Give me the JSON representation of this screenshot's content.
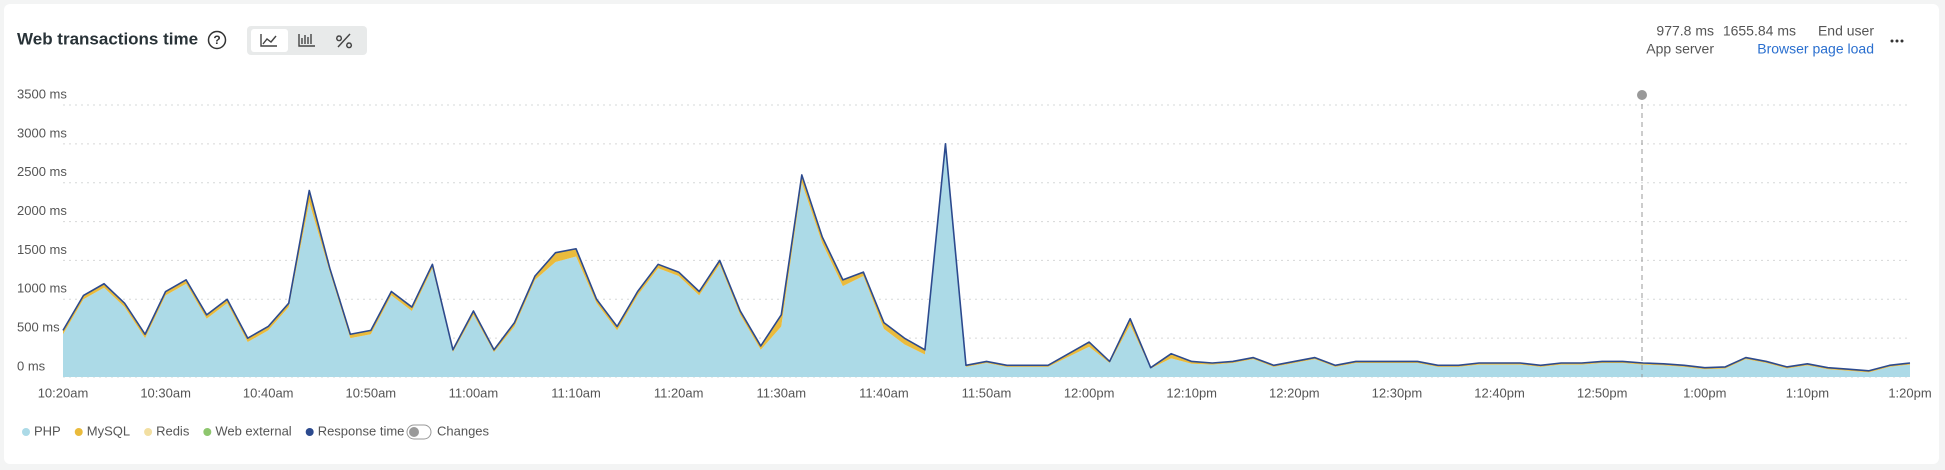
{
  "header": {
    "title": "Web transactions time",
    "summary": [
      {
        "value": "977.8 ms",
        "label": "App server"
      },
      {
        "value": "1655.84 ms",
        "label": "End user",
        "link": "Browser page load"
      }
    ],
    "toggle": "Changes"
  },
  "chart_data": {
    "type": "area",
    "categories": [
      "10:20am",
      null,
      null,
      null,
      null,
      "10:30am",
      null,
      null,
      null,
      null,
      "10:40am",
      null,
      null,
      null,
      null,
      "10:50am",
      null,
      null,
      null,
      null,
      "11:00am",
      null,
      null,
      null,
      null,
      "11:10am",
      null,
      null,
      null,
      null,
      "11:20am",
      null,
      null,
      null,
      null,
      "11:30am",
      null,
      null,
      null,
      null,
      "11:40am",
      null,
      null,
      null,
      null,
      "11:50am",
      null,
      null,
      null,
      null,
      "12:00pm",
      null,
      null,
      null,
      null,
      "12:10pm",
      null,
      null,
      null,
      null,
      "12:20pm",
      null,
      null,
      null,
      null,
      "12:30pm",
      null,
      null,
      null,
      null,
      "12:40pm",
      null,
      null,
      null,
      null,
      "12:50pm",
      null,
      null,
      null,
      null,
      "1:00pm",
      null,
      null,
      null,
      null,
      "1:10pm",
      null,
      null,
      null,
      null,
      "1:20pm"
    ],
    "series": [
      {
        "name": "PHP",
        "type": "area",
        "color": "#acdae7",
        "values": [
          550,
          1000,
          1150,
          900,
          500,
          1050,
          1200,
          750,
          950,
          450,
          600,
          900,
          2250,
          1350,
          500,
          550,
          1050,
          850,
          1400,
          320,
          800,
          320,
          650,
          1250,
          1480,
          1550,
          950,
          600,
          1050,
          1400,
          1300,
          1050,
          1450,
          800,
          350,
          650,
          2500,
          1720,
          1170,
          1300,
          620,
          420,
          290,
          2950,
          130,
          180,
          130,
          130,
          130,
          260,
          390,
          180,
          670,
          110,
          240,
          170,
          160,
          180,
          230,
          130,
          180,
          230,
          130,
          180,
          180,
          180,
          180,
          130,
          130,
          160,
          160,
          160,
          130,
          160,
          160,
          180,
          180,
          160,
          150,
          130,
          100,
          110,
          230,
          180,
          110,
          150,
          100,
          80,
          60,
          130,
          160
        ]
      },
      {
        "name": "MySQL",
        "type": "area",
        "color": "#eabb3c",
        "values": [
          50,
          50,
          50,
          50,
          50,
          50,
          50,
          50,
          50,
          50,
          50,
          50,
          150,
          50,
          50,
          50,
          50,
          50,
          50,
          30,
          50,
          30,
          50,
          50,
          120,
          100,
          50,
          50,
          50,
          50,
          50,
          50,
          50,
          50,
          50,
          150,
          100,
          80,
          80,
          50,
          80,
          80,
          60,
          50,
          20,
          20,
          20,
          20,
          20,
          40,
          60,
          20,
          80,
          10,
          60,
          30,
          20,
          20,
          20,
          20,
          20,
          20,
          20,
          20,
          20,
          20,
          20,
          20,
          20,
          20,
          20,
          20,
          20,
          20,
          20,
          20,
          20,
          20,
          20,
          20,
          20,
          20,
          20,
          20,
          20,
          20,
          20,
          20,
          20,
          20,
          20
        ]
      },
      {
        "name": "Redis",
        "type": "area",
        "color": "#f2dfa2",
        "values": [
          0,
          0,
          0,
          0,
          0,
          0,
          0,
          0,
          0,
          0,
          0,
          0,
          0,
          0,
          0,
          0,
          0,
          0,
          0,
          0,
          0,
          0,
          0,
          0,
          0,
          0,
          0,
          0,
          0,
          0,
          0,
          0,
          0,
          0,
          0,
          0,
          0,
          0,
          0,
          0,
          0,
          0,
          0,
          0,
          0,
          0,
          0,
          0,
          0,
          0,
          0,
          0,
          0,
          0,
          0,
          0,
          0,
          0,
          0,
          0,
          0,
          0,
          0,
          0,
          0,
          0,
          0,
          0,
          0,
          0,
          0,
          0,
          0,
          0,
          0,
          0,
          0,
          0,
          0,
          0,
          0,
          0,
          0,
          0,
          0,
          0,
          0,
          0,
          0,
          0,
          0
        ]
      },
      {
        "name": "Web external",
        "type": "area",
        "color": "#8ec66e",
        "values": [
          0,
          0,
          0,
          0,
          0,
          0,
          0,
          0,
          0,
          0,
          0,
          0,
          0,
          0,
          0,
          0,
          0,
          0,
          0,
          0,
          0,
          0,
          0,
          0,
          0,
          0,
          0,
          0,
          0,
          0,
          0,
          0,
          0,
          0,
          0,
          0,
          0,
          0,
          0,
          0,
          0,
          0,
          0,
          0,
          0,
          0,
          0,
          0,
          0,
          0,
          0,
          0,
          0,
          0,
          0,
          0,
          0,
          0,
          0,
          0,
          0,
          0,
          0,
          0,
          0,
          0,
          0,
          0,
          0,
          0,
          0,
          0,
          0,
          0,
          0,
          0,
          0,
          0,
          0,
          0,
          0,
          0,
          0,
          0,
          0,
          0,
          0,
          0,
          0,
          0,
          0
        ]
      },
      {
        "name": "Response time",
        "type": "line",
        "color": "#2c4a8e",
        "values": [
          600,
          1050,
          1200,
          950,
          550,
          1100,
          1250,
          800,
          1000,
          500,
          650,
          950,
          2400,
          1400,
          550,
          600,
          1100,
          900,
          1450,
          350,
          850,
          350,
          700,
          1300,
          1600,
          1650,
          1000,
          650,
          1100,
          1450,
          1350,
          1100,
          1500,
          850,
          400,
          800,
          2600,
          1800,
          1250,
          1350,
          700,
          500,
          350,
          3000,
          150,
          200,
          150,
          150,
          150,
          300,
          450,
          200,
          750,
          120,
          300,
          200,
          180,
          200,
          250,
          150,
          200,
          250,
          150,
          200,
          200,
          200,
          200,
          150,
          150,
          180,
          180,
          180,
          150,
          180,
          180,
          200,
          200,
          180,
          170,
          150,
          120,
          130,
          250,
          200,
          130,
          170,
          120,
          100,
          80,
          150,
          180
        ]
      }
    ],
    "ylim": [
      0,
      3500
    ],
    "yticks": [
      {
        "value": 0,
        "label": "0 ms"
      },
      {
        "value": 500,
        "label": "500 ms"
      },
      {
        "value": 1000,
        "label": "1000 ms"
      },
      {
        "value": 1500,
        "label": "1500 ms"
      },
      {
        "value": 2000,
        "label": "2000 ms"
      },
      {
        "value": 2500,
        "label": "2500 ms"
      },
      {
        "value": 3000,
        "label": "3000 ms"
      },
      {
        "value": 3500,
        "label": "3500 ms"
      }
    ],
    "grid": true,
    "legend": "bottom"
  }
}
